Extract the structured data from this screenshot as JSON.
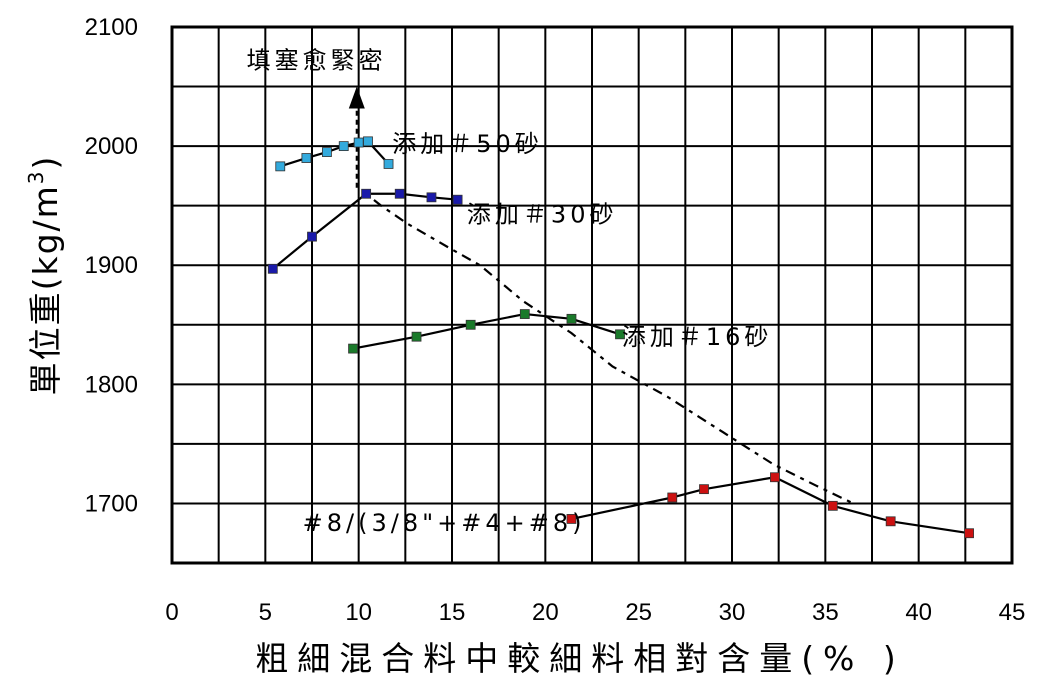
{
  "chart_data": {
    "type": "line",
    "xlabel": "粗細混合料中較細料相對含量(% )",
    "ylabel": "單位重(kg/m",
    "ylabel_sup": "3",
    "ylabel_close": ")",
    "xlim": [
      0,
      45
    ],
    "ylim": [
      1650,
      2100
    ],
    "x_ticks": [
      "0",
      "5",
      "10",
      "15",
      "20",
      "25",
      "30",
      "35",
      "40",
      "45"
    ],
    "y_ticks": [
      "1700",
      "1800",
      "1900",
      "2000",
      "2100"
    ],
    "grid": true,
    "series": [
      {
        "name": "添加＃50砂",
        "color": "#33aadd",
        "x": [
          5.8,
          7.2,
          8.3,
          9.2,
          10,
          10.5,
          11.6
        ],
        "y": [
          1983,
          1990,
          1995,
          2000,
          2003,
          2004,
          1985
        ]
      },
      {
        "name": "添加＃30砂",
        "color": "#1a1aaa",
        "x": [
          5.4,
          7.5,
          10.4,
          12.2,
          13.9,
          15.3
        ],
        "y": [
          1897,
          1924,
          1960,
          1960,
          1957,
          1955
        ]
      },
      {
        "name": "添加＃16砂",
        "color": "#1a7a2a",
        "x": [
          9.7,
          13.1,
          16,
          18.9,
          21.4,
          24
        ],
        "y": [
          1830,
          1840,
          1850,
          1859,
          1855,
          1842
        ]
      },
      {
        "name": "#8/(3/8\"+#4+#8)",
        "color": "#cc1111",
        "x": [
          21.4,
          26.8,
          28.5,
          32.3,
          35.4,
          38.5,
          42.7
        ],
        "y": [
          1687,
          1705,
          1712,
          1722,
          1698,
          1685,
          1675
        ]
      }
    ],
    "annotations": [
      {
        "text": "填塞愈緊密",
        "x": 4,
        "y": 2065
      },
      {
        "text": "添加＃50砂",
        "x": 11.8,
        "y": 1995
      },
      {
        "text": "添加＃30砂",
        "x": 15.8,
        "y": 1936
      },
      {
        "text": "添加＃16砂",
        "x": 24.1,
        "y": 1833
      },
      {
        "text": "#8/(3/8\"+#4+#8)",
        "x": 7,
        "y": 1677
      }
    ]
  }
}
